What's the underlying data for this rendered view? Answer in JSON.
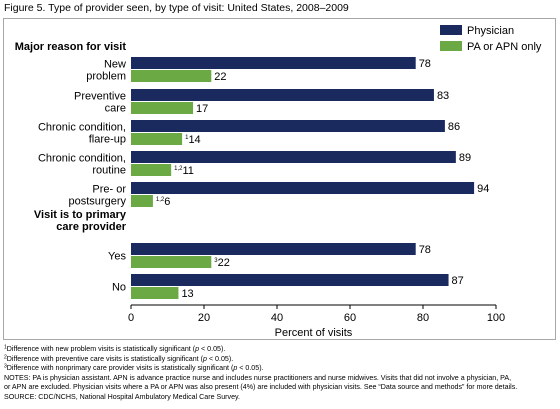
{
  "title": "Figure 5. Type of provider seen, by type of visit: United States, 2008–2009",
  "colors": {
    "physician": "#1b2a5e",
    "pa_apn": "#6aa943"
  },
  "chart_data": {
    "type": "bar",
    "orientation": "horizontal",
    "xlabel": "Percent of visits",
    "xlim": [
      0,
      100
    ],
    "xticks": [
      0,
      20,
      40,
      60,
      80,
      100
    ],
    "legend_position": "top-right",
    "groups": [
      {
        "header": "Major reason for visit",
        "header_lines": [
          "Major reason for visit"
        ],
        "categories": [
          {
            "label": [
              "New",
              "problem"
            ],
            "physician": 78,
            "pa_apn": 22,
            "pa_apn_note": ""
          },
          {
            "label": [
              "Preventive",
              "care"
            ],
            "physician": 83,
            "pa_apn": 17,
            "pa_apn_note": ""
          },
          {
            "label": [
              "Chronic condition,",
              "flare-up"
            ],
            "physician": 86,
            "pa_apn": 14,
            "pa_apn_note": "1"
          },
          {
            "label": [
              "Chronic condition,",
              "routine"
            ],
            "physician": 89,
            "pa_apn": 11,
            "pa_apn_note": "1,2"
          },
          {
            "label": [
              "Pre- or",
              "postsurgery"
            ],
            "physician": 94,
            "pa_apn": 6,
            "pa_apn_note": "1,2"
          }
        ]
      },
      {
        "header": "Visit is to primary care provider",
        "header_lines": [
          "Visit is to primary",
          "care provider"
        ],
        "categories": [
          {
            "label": [
              "Yes"
            ],
            "physician": 78,
            "pa_apn": 22,
            "pa_apn_note": "3"
          },
          {
            "label": [
              "No"
            ],
            "physician": 87,
            "pa_apn": 13,
            "pa_apn_note": ""
          }
        ]
      }
    ],
    "series": [
      {
        "key": "physician",
        "name": "Physician"
      },
      {
        "key": "pa_apn",
        "name": "PA or APN only"
      }
    ]
  },
  "footnotes": [
    {
      "sup": "1",
      "text": "Difference with new problem visits is statistically significant (",
      "p": "p",
      "tail": " < 0.05)."
    },
    {
      "sup": "2",
      "text": "Difference with preventive care visits is statistically significant (",
      "p": "p",
      "tail": " < 0.05)."
    },
    {
      "sup": "3",
      "text": "Difference with nonprimary care provider visits is statistically significant (",
      "p": "p",
      "tail": " < 0.05)."
    }
  ],
  "notes": [
    "NOTES: PA is physician assistant. APN is advance practice nurse and includes nurse practitioners and nurse midwives. Visits that did not involve a physician, PA,",
    "or APN are excluded. Physician visits where a PA or APN was also present (4%) are included with physician visits. See “Data source and methods” for more details.",
    "SOURCE: CDC/NCHS, National Hospital Ambulatory Medical Care Survey."
  ]
}
